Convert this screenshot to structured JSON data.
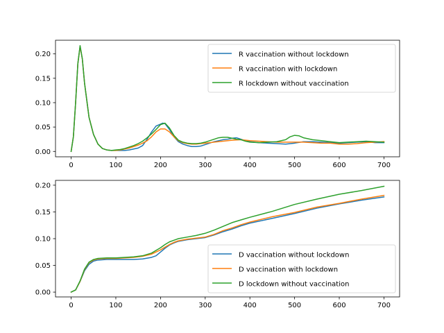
{
  "chart_data": [
    {
      "type": "line",
      "title": "",
      "xlabel": "",
      "ylabel": "",
      "xlim": [
        -35,
        735
      ],
      "ylim": [
        -0.011,
        0.228
      ],
      "xticks": [
        0,
        100,
        200,
        300,
        400,
        500,
        600,
        700
      ],
      "yticks": [
        0.0,
        0.05,
        0.1,
        0.15,
        0.2
      ],
      "ytick_labels": [
        "0.00",
        "0.05",
        "0.10",
        "0.15",
        "0.20"
      ],
      "legend_position": "upper right",
      "series": [
        {
          "name": "R vaccination without lockdown",
          "color": "#1f77b4",
          "x": [
            0,
            5,
            10,
            15,
            20,
            25,
            30,
            40,
            50,
            60,
            70,
            80,
            90,
            100,
            110,
            120,
            130,
            140,
            150,
            160,
            170,
            180,
            190,
            200,
            205,
            210,
            220,
            230,
            240,
            250,
            260,
            270,
            280,
            290,
            300,
            310,
            320,
            330,
            340,
            350,
            360,
            370,
            380,
            390,
            400,
            420,
            440,
            460,
            480,
            500,
            520,
            540,
            560,
            580,
            600,
            620,
            640,
            660,
            680,
            700
          ],
          "y": [
            0.0,
            0.03,
            0.1,
            0.18,
            0.215,
            0.19,
            0.14,
            0.07,
            0.035,
            0.015,
            0.006,
            0.003,
            0.002,
            0.002,
            0.002,
            0.002,
            0.003,
            0.005,
            0.007,
            0.012,
            0.025,
            0.04,
            0.052,
            0.056,
            0.058,
            0.057,
            0.045,
            0.03,
            0.02,
            0.015,
            0.012,
            0.01,
            0.01,
            0.011,
            0.014,
            0.017,
            0.02,
            0.022,
            0.024,
            0.025,
            0.027,
            0.028,
            0.025,
            0.022,
            0.02,
            0.018,
            0.017,
            0.016,
            0.015,
            0.017,
            0.02,
            0.02,
            0.019,
            0.018,
            0.017,
            0.018,
            0.019,
            0.02,
            0.018,
            0.018
          ]
        },
        {
          "name": "R vaccination with lockdown",
          "color": "#ff7f0e",
          "x": [
            0,
            5,
            10,
            15,
            20,
            25,
            30,
            40,
            50,
            60,
            70,
            80,
            90,
            100,
            110,
            120,
            130,
            140,
            150,
            160,
            170,
            180,
            190,
            200,
            210,
            220,
            230,
            240,
            250,
            260,
            270,
            280,
            290,
            300,
            320,
            340,
            360,
            380,
            400,
            420,
            440,
            460,
            480,
            500,
            520,
            540,
            560,
            580,
            600,
            620,
            640,
            660,
            680,
            700
          ],
          "y": [
            0.0,
            0.03,
            0.1,
            0.18,
            0.215,
            0.19,
            0.14,
            0.07,
            0.035,
            0.015,
            0.006,
            0.003,
            0.002,
            0.002,
            0.003,
            0.005,
            0.007,
            0.01,
            0.013,
            0.017,
            0.022,
            0.03,
            0.04,
            0.046,
            0.046,
            0.04,
            0.03,
            0.022,
            0.018,
            0.016,
            0.015,
            0.015,
            0.016,
            0.017,
            0.019,
            0.021,
            0.023,
            0.024,
            0.022,
            0.021,
            0.02,
            0.019,
            0.019,
            0.019,
            0.019,
            0.018,
            0.017,
            0.017,
            0.015,
            0.015,
            0.016,
            0.018,
            0.019,
            0.02
          ]
        },
        {
          "name": "R lockdown without vaccination",
          "color": "#2ca02c",
          "x": [
            0,
            5,
            10,
            15,
            20,
            25,
            30,
            40,
            50,
            60,
            70,
            80,
            90,
            100,
            110,
            120,
            130,
            140,
            150,
            160,
            170,
            180,
            190,
            200,
            210,
            220,
            230,
            240,
            250,
            260,
            270,
            280,
            290,
            300,
            310,
            320,
            330,
            340,
            350,
            360,
            370,
            380,
            390,
            400,
            420,
            440,
            460,
            480,
            490,
            500,
            510,
            520,
            540,
            560,
            580,
            600,
            620,
            640,
            660,
            680,
            700
          ],
          "y": [
            0.0,
            0.03,
            0.1,
            0.18,
            0.217,
            0.19,
            0.14,
            0.07,
            0.035,
            0.015,
            0.006,
            0.003,
            0.002,
            0.003,
            0.004,
            0.006,
            0.009,
            0.012,
            0.016,
            0.021,
            0.028,
            0.036,
            0.045,
            0.055,
            0.058,
            0.048,
            0.033,
            0.023,
            0.019,
            0.017,
            0.016,
            0.016,
            0.017,
            0.019,
            0.022,
            0.025,
            0.028,
            0.029,
            0.029,
            0.027,
            0.025,
            0.024,
            0.021,
            0.019,
            0.018,
            0.019,
            0.02,
            0.024,
            0.03,
            0.033,
            0.032,
            0.028,
            0.024,
            0.022,
            0.02,
            0.018,
            0.019,
            0.02,
            0.021,
            0.02,
            0.019
          ]
        }
      ]
    },
    {
      "type": "line",
      "title": "",
      "xlabel": "",
      "ylabel": "",
      "xlim": [
        -35,
        735
      ],
      "ylim": [
        -0.009,
        0.209
      ],
      "xticks": [
        0,
        100,
        200,
        300,
        400,
        500,
        600,
        700
      ],
      "yticks": [
        0.0,
        0.05,
        0.1,
        0.15,
        0.2
      ],
      "ytick_labels": [
        "0.00",
        "0.05",
        "0.10",
        "0.15",
        "0.20"
      ],
      "legend_position": "lower right",
      "series": [
        {
          "name": "D vaccination without lockdown",
          "color": "#1f77b4",
          "x": [
            0,
            10,
            20,
            30,
            40,
            50,
            60,
            80,
            100,
            120,
            140,
            160,
            180,
            190,
            200,
            210,
            220,
            230,
            240,
            260,
            280,
            300,
            320,
            340,
            360,
            380,
            400,
            450,
            500,
            550,
            600,
            650,
            700
          ],
          "y": [
            0.0,
            0.004,
            0.02,
            0.04,
            0.052,
            0.058,
            0.06,
            0.061,
            0.061,
            0.061,
            0.061,
            0.062,
            0.065,
            0.068,
            0.075,
            0.082,
            0.088,
            0.092,
            0.095,
            0.098,
            0.1,
            0.102,
            0.107,
            0.113,
            0.118,
            0.124,
            0.129,
            0.138,
            0.147,
            0.157,
            0.165,
            0.172,
            0.178
          ]
        },
        {
          "name": "D vaccination with lockdown",
          "color": "#ff7f0e",
          "x": [
            0,
            10,
            20,
            30,
            40,
            50,
            60,
            80,
            100,
            120,
            140,
            160,
            180,
            200,
            210,
            220,
            230,
            240,
            260,
            280,
            300,
            320,
            340,
            360,
            380,
            400,
            450,
            500,
            550,
            600,
            650,
            700
          ],
          "y": [
            0.0,
            0.004,
            0.02,
            0.042,
            0.055,
            0.06,
            0.062,
            0.063,
            0.063,
            0.064,
            0.065,
            0.067,
            0.071,
            0.079,
            0.084,
            0.089,
            0.093,
            0.096,
            0.099,
            0.101,
            0.103,
            0.108,
            0.115,
            0.12,
            0.126,
            0.131,
            0.141,
            0.149,
            0.159,
            0.166,
            0.174,
            0.181
          ]
        },
        {
          "name": "D lockdown without vaccination",
          "color": "#2ca02c",
          "x": [
            0,
            10,
            20,
            30,
            40,
            50,
            60,
            80,
            100,
            120,
            140,
            160,
            180,
            200,
            210,
            220,
            230,
            240,
            260,
            280,
            300,
            320,
            340,
            360,
            380,
            400,
            450,
            500,
            550,
            600,
            650,
            700
          ],
          "y": [
            0.0,
            0.004,
            0.021,
            0.043,
            0.056,
            0.061,
            0.063,
            0.064,
            0.064,
            0.065,
            0.066,
            0.068,
            0.073,
            0.083,
            0.089,
            0.094,
            0.097,
            0.1,
            0.103,
            0.106,
            0.11,
            0.116,
            0.123,
            0.13,
            0.135,
            0.14,
            0.151,
            0.164,
            0.174,
            0.183,
            0.19,
            0.198
          ]
        }
      ]
    }
  ]
}
